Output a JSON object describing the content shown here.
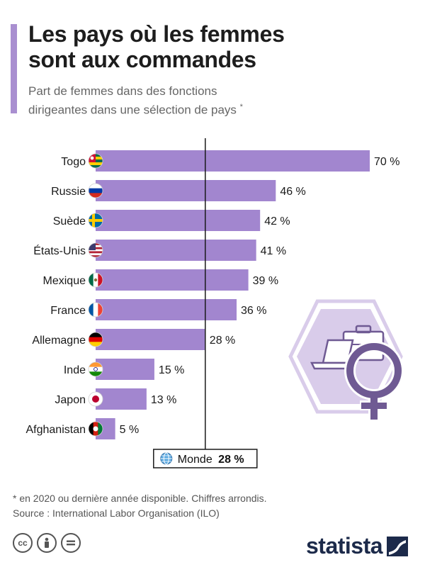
{
  "header": {
    "title_line1": "Les pays où les femmes",
    "title_line2": "sont aux commandes",
    "subtitle_line1": "Part de femmes dans des fonctions",
    "subtitle_line2": "dirigeantes dans une sélection de pays",
    "subtitle_mark": "*"
  },
  "chart_data": {
    "type": "bar",
    "orientation": "horizontal",
    "categories": [
      "Togo",
      "Russie",
      "Suède",
      "États-Unis",
      "Mexique",
      "France",
      "Allemagne",
      "Inde",
      "Japon",
      "Afghanistan"
    ],
    "values": [
      70,
      46,
      42,
      41,
      39,
      36,
      28,
      15,
      13,
      5
    ],
    "value_labels": [
      "70 %",
      "46 %",
      "42 %",
      "41 %",
      "39 %",
      "36 %",
      "28 %",
      "15 %",
      "13 %",
      "5 %"
    ],
    "flags": [
      "togo-flag-icon",
      "russia-flag-icon",
      "sweden-flag-icon",
      "usa-flag-icon",
      "mexico-flag-icon",
      "france-flag-icon",
      "germany-flag-icon",
      "india-flag-icon",
      "japan-flag-icon",
      "afghanistan-flag-icon"
    ],
    "reference": {
      "label": "Monde",
      "value": 28,
      "value_label": "28 %"
    },
    "xlim": [
      0,
      70
    ],
    "bar_color": "#a286cf",
    "grid": false
  },
  "footer": {
    "note": "* en 2020 ou dernière année disponible. Chiffres arrondis.",
    "source": "Source : International Labor Organisation (ILO)",
    "brand": "statista",
    "license_icons": [
      "creative-commons-icon",
      "attribution-icon",
      "no-derivatives-icon"
    ]
  },
  "colors": {
    "accent": "#a98fd0",
    "bar": "#a286cf",
    "illustration": "#d9ccea",
    "brand": "#1c2a4a"
  }
}
